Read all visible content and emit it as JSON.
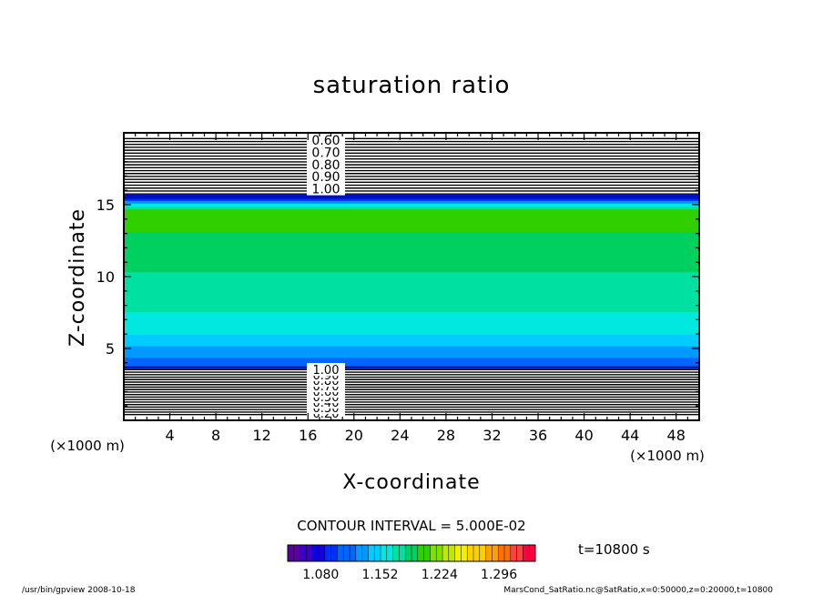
{
  "chart_data": {
    "type": "heatmap",
    "title": "saturation ratio",
    "xlabel": "X-coordinate",
    "ylabel": "Z-coordinate",
    "x_unit": "(×1000 m)",
    "y_unit": "(×1000 m)",
    "xlim": [
      0,
      50
    ],
    "ylim": [
      0,
      20
    ],
    "x_ticks": [
      "4",
      "8",
      "12",
      "16",
      "20",
      "24",
      "28",
      "32",
      "36",
      "40",
      "44",
      "48"
    ],
    "y_ticks": [
      "5",
      "10",
      "15"
    ],
    "contour_interval_text": "CONTOUR INTERVAL = 5.000E-02",
    "time_text": "t=10800 s",
    "colorbar_labels": [
      "1.080",
      "1.152",
      "1.224",
      "1.296"
    ],
    "colorbar_range": [
      1.04,
      1.34
    ],
    "upper_contour_labels": [
      "0.60",
      "0.70",
      "0.80",
      "0.90",
      "1.00"
    ],
    "lower_contour_labels": [
      "0.20",
      "0.30",
      "0.40",
      "0.50",
      "0.60",
      "0.70",
      "0.80",
      "0.90",
      "1.00"
    ],
    "upper_contour_levels": [
      0.05,
      0.1,
      0.15,
      0.2,
      0.25,
      0.3,
      0.35,
      0.4,
      0.45,
      0.5,
      0.55,
      0.6,
      0.65,
      0.7,
      0.75,
      0.8,
      0.85,
      0.9,
      0.95,
      1.0
    ],
    "lower_contour_levels": [
      0.05,
      0.1,
      0.15,
      0.2,
      0.25,
      0.3,
      0.35,
      0.4,
      0.45,
      0.5,
      0.55,
      0.6,
      0.65,
      0.7,
      0.75,
      0.8,
      0.85,
      0.9,
      0.95,
      1.0
    ],
    "profile": [
      {
        "z": 3.6,
        "value": 1.1
      },
      {
        "z": 4.5,
        "value": 1.12
      },
      {
        "z": 6.0,
        "value": 1.15
      },
      {
        "z": 8.0,
        "value": 1.17
      },
      {
        "z": 10.0,
        "value": 1.18
      },
      {
        "z": 12.0,
        "value": 1.19
      },
      {
        "z": 13.5,
        "value": 1.2
      },
      {
        "z": 14.5,
        "value": 1.21
      },
      {
        "z": 15.0,
        "value": 1.16
      },
      {
        "z": 15.5,
        "value": 1.08
      }
    ]
  },
  "footer": {
    "left": "/usr/bin/gpview   2008-10-18",
    "right": "MarsCond_SatRatio.nc@SatRatio,x=0:50000,z=0:20000,t=10800"
  },
  "colors": {
    "colorbar": [
      "#5a00a0",
      "#3a00c8",
      "#1000e8",
      "#0030ff",
      "#0066ff",
      "#0099ff",
      "#00ccff",
      "#00e8e0",
      "#00e0a0",
      "#00d060",
      "#30d000",
      "#80e000",
      "#c0e800",
      "#f0f000",
      "#ffd000",
      "#ffa000",
      "#ff7000",
      "#ff4040",
      "#ff0040"
    ]
  }
}
